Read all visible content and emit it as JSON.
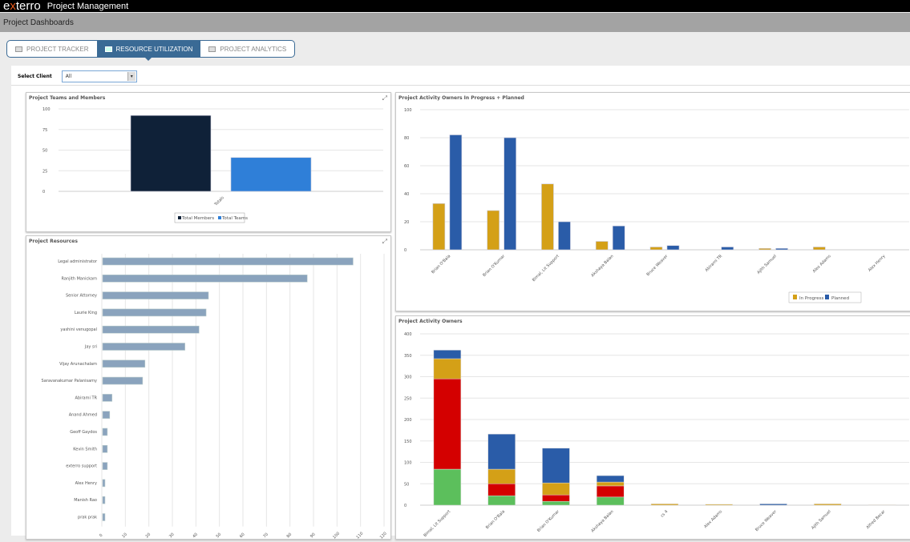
{
  "app": {
    "logo": "exterro",
    "title": "Project Management",
    "subtitle": "Project Dashboards"
  },
  "tabs": [
    {
      "label": "PROJECT TRACKER",
      "icon": "briefcase-icon",
      "active": false
    },
    {
      "label": "RESOURCE UTILIZATION",
      "icon": "monitor-icon",
      "active": true
    },
    {
      "label": "PROJECT ANALYTICS",
      "icon": "analytics-icon",
      "active": false
    }
  ],
  "filter": {
    "label": "Select Client",
    "value": "All"
  },
  "colors": {
    "brand": "#e85a1b",
    "tab_active": "#3a6a95"
  },
  "chart_data": [
    {
      "id": "teams",
      "type": "bar",
      "title": "Project Teams and Members",
      "categories": [
        "Totals"
      ],
      "ylim": [
        0,
        100
      ],
      "yticks": [
        0,
        25,
        50,
        75,
        100
      ],
      "grid": true,
      "legend": "bottom",
      "series": [
        {
          "name": "Total Members",
          "color": "#0f2138",
          "values": [
            92
          ]
        },
        {
          "name": "Total Teams",
          "color": "#2f7fd8",
          "values": [
            41
          ]
        }
      ]
    },
    {
      "id": "resources",
      "type": "bar",
      "orientation": "horizontal",
      "title": "Project Resources",
      "xlim": [
        0,
        120
      ],
      "xticks": [
        0,
        10,
        20,
        30,
        40,
        50,
        60,
        70,
        80,
        90,
        100,
        110,
        120
      ],
      "grid": true,
      "color": "#8aa3bd",
      "categories": [
        "Legal administrator",
        "Ranjith Manickam",
        "Senior Attorney",
        "Laurie King",
        "yashini venugopal",
        "Jay sri",
        "Vijay Arunachalam",
        "Saravanakumar Palanisamy",
        "Abirami TR",
        "Anand Ahmed",
        "Geoff Gaydos",
        "Kevin Smith",
        "exterro support",
        "Alex Henry",
        "Manish Rao",
        "prak prak"
      ],
      "values": [
        106.5,
        87,
        45,
        44,
        41,
        35,
        18,
        17,
        4,
        3,
        2,
        2,
        2,
        1,
        1,
        1
      ]
    },
    {
      "id": "owners_ip",
      "type": "bar",
      "title": "Project Activity Owners In Progress + Planned",
      "ylim": [
        0,
        100
      ],
      "yticks": [
        0,
        20,
        40,
        60,
        80,
        100
      ],
      "grid": true,
      "legend": "bottom-right",
      "categories": [
        "Brian O'Bala",
        "Brian O'Kumar",
        "Bimal, Lit Support",
        "Akshaya Balan",
        "Bruce Weaver",
        "Abirami TR",
        "Ajith Samuel",
        "Alex Adams",
        "Alex Henry"
      ],
      "series": [
        {
          "name": "In Progress",
          "color": "#d4a017",
          "values": [
            33,
            28,
            47,
            6,
            2,
            0,
            1,
            2,
            0
          ]
        },
        {
          "name": "Planned",
          "color": "#2a5ca8",
          "values": [
            82,
            80,
            20,
            17,
            3,
            2,
            1,
            0,
            0
          ]
        }
      ]
    },
    {
      "id": "owners",
      "type": "bar",
      "stacked": true,
      "title": "Project Activity Owners",
      "ylim": [
        0,
        400
      ],
      "yticks": [
        0,
        50,
        100,
        150,
        200,
        250,
        300,
        350,
        400
      ],
      "grid": true,
      "categories": [
        "Bimal, Lit Support",
        "Brian O'Bala",
        "Brian O'Kumar",
        "Akshaya Balan",
        "cs 4",
        "Alex Adams",
        "Bruce Weaver",
        "Ajith Samuel",
        "Alfred Becar"
      ],
      "series": [
        {
          "color": "#5cbf5c",
          "values": [
            84,
            22,
            9,
            19,
            0,
            0,
            0,
            0,
            0
          ]
        },
        {
          "color": "#d40000",
          "values": [
            211,
            28,
            15,
            26,
            0,
            0,
            0,
            0,
            0
          ]
        },
        {
          "color": "#d4a017",
          "values": [
            47,
            34,
            28,
            9,
            3,
            2,
            0,
            3,
            1
          ]
        },
        {
          "color": "#2a5ca8",
          "values": [
            20,
            82,
            81,
            15,
            0,
            0,
            3,
            0,
            0
          ]
        }
      ]
    }
  ]
}
